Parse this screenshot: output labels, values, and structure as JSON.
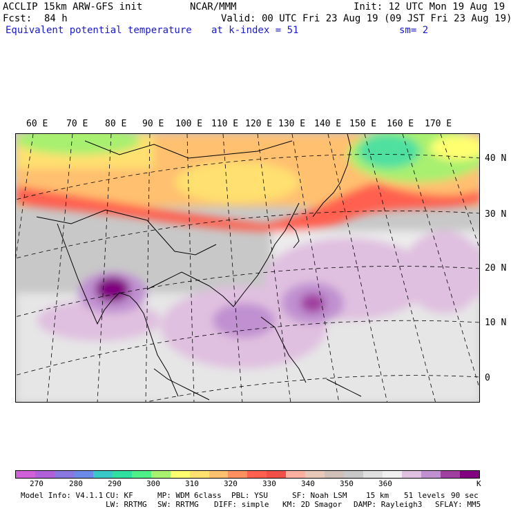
{
  "header": {
    "model": "ACCLIP 15km ARW-GFS init",
    "org": "NCAR/MMM",
    "init": "Init: 12 UTC Mon 19 Aug 19",
    "fcst_label": "Fcst:",
    "fcst_value": "84 h",
    "valid": "Valid: 00 UTC Fri 23 Aug 19 (09 JST Fri 23 Aug 19)",
    "field": "Equivalent potential temperature",
    "level": "at k-index =  51",
    "smooth": "sm= 2"
  },
  "map": {
    "lon_labels": [
      "60 E",
      "70 E",
      "80 E",
      "90 E",
      "100 E",
      "110 E",
      "120 E",
      "130 E",
      "140 E",
      "150 E",
      "160 E",
      "170 E"
    ],
    "lat_labels": [
      "40 N",
      "30 N",
      "20 N",
      "10 N",
      "0"
    ]
  },
  "colorbar": {
    "colors": [
      "#d060d8",
      "#b060d8",
      "#8878e0",
      "#6c8ae8",
      "#38c8c8",
      "#30e0a0",
      "#50f088",
      "#a8f070",
      "#ffff70",
      "#ffe070",
      "#ffc070",
      "#ff9060",
      "#ff6050",
      "#f05048",
      "#ffb0a0",
      "#e8c8b8",
      "#d0c0b8",
      "#c8c8c8",
      "#e0e0e0",
      "#f0f0f0",
      "#e0c0e0",
      "#c090d0",
      "#a040a0",
      "#800080"
    ],
    "tick_labels": [
      "270",
      "280",
      "290",
      "300",
      "310",
      "320",
      "330",
      "340",
      "350",
      "360"
    ],
    "unit": "K"
  },
  "footer": {
    "line1": [
      "Model Info: V4.1.1",
      "CU: KF",
      "MP: WDM 6class",
      "PBL: YSU",
      "SF: Noah LSM",
      "15 km",
      "51 levels",
      "90 sec"
    ],
    "line2": [
      "LW: RRTMG",
      "SW: RRTMG",
      "DIFF: simple",
      "KM: 2D Smagor",
      "DAMP: Rayleigh3",
      "SFLAY: MM5"
    ]
  }
}
